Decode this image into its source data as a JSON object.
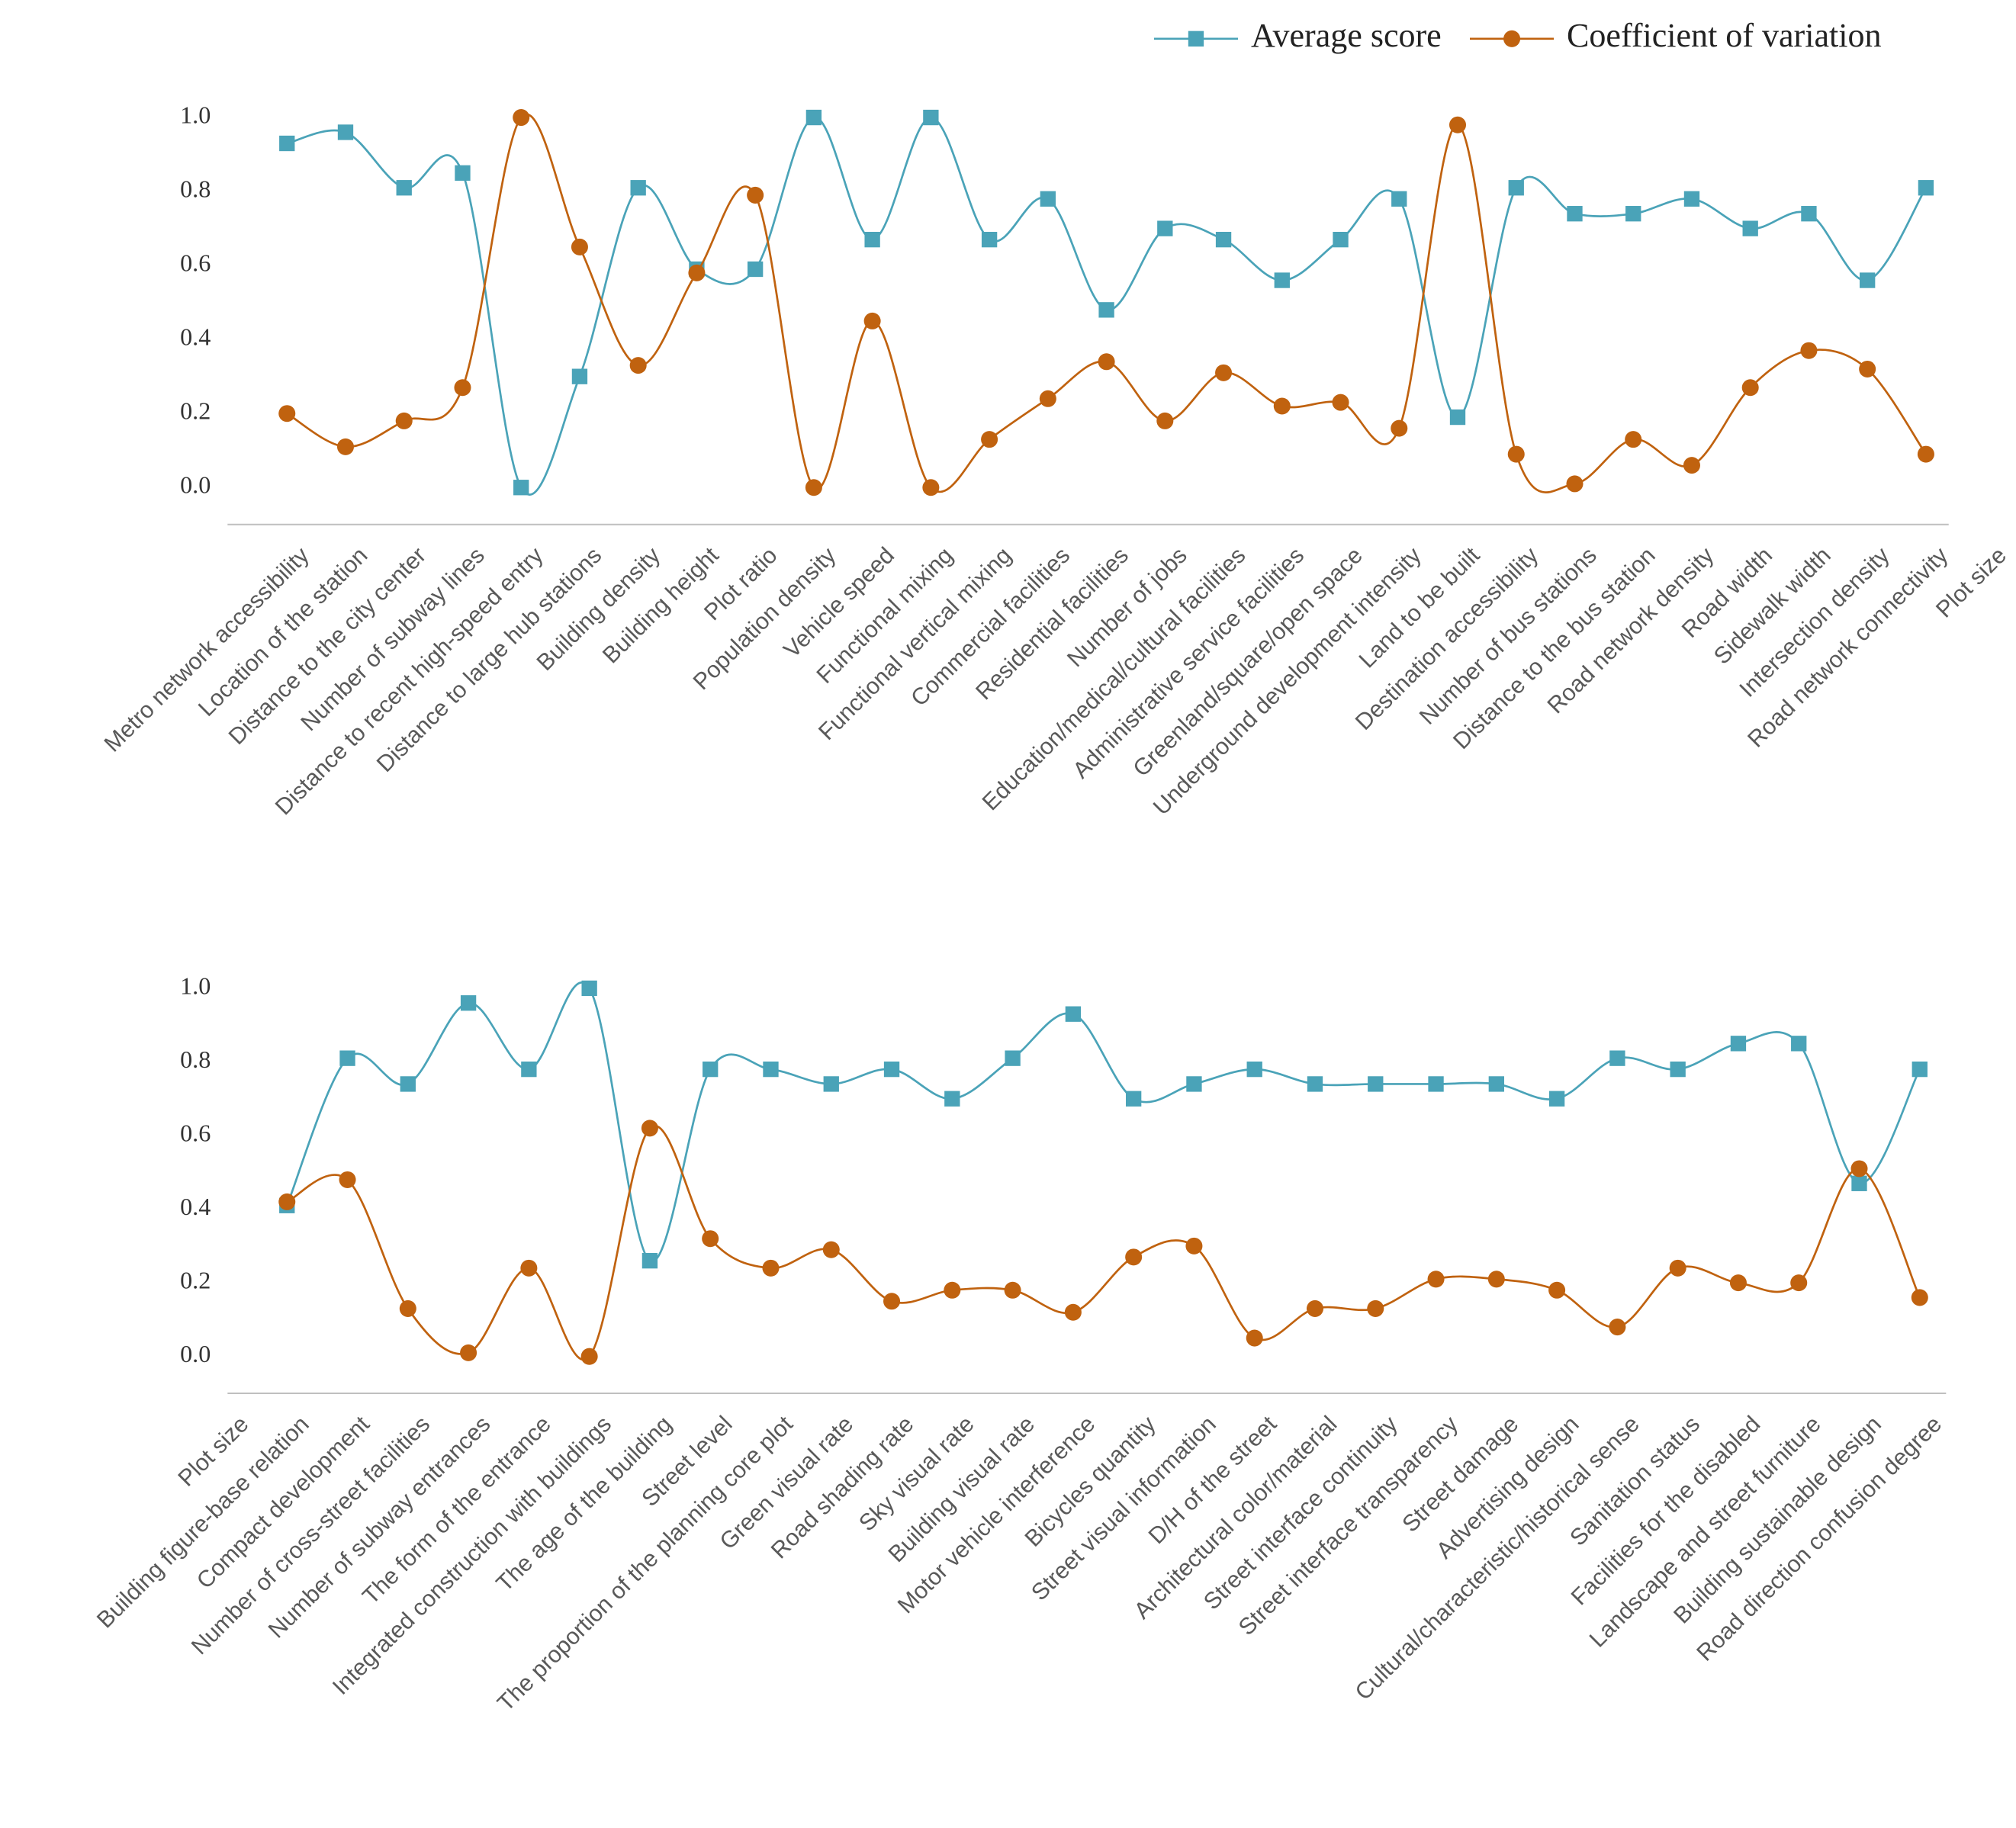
{
  "chart_data": [
    {
      "type": "line",
      "legend": "top-right",
      "categories": [
        "Metro network accessibility",
        "Location of the station",
        "Distance to the city center",
        "Number of subway lines",
        "Distance to recent high-speed entry",
        "Distance to large hub stations",
        "Building density",
        "Building height",
        "Plot ratio",
        "Population density",
        "Vehicle speed",
        "Functional mixing",
        "Functional vertical mixing",
        "Commercial facilities",
        "Residential facilities",
        "Number of jobs",
        "Education/medical/cultural facilities",
        "Administrative service facilities",
        "Greenland/square/open space",
        "Underground development intensity",
        "Land to be built",
        "Destination accessibility",
        "Number of bus stations",
        "Distance to the bus station",
        "Road network density",
        "Road width",
        "Sidewalk width",
        "Intersection density",
        "Road network connectivity",
        "Plot size"
      ],
      "series": [
        {
          "name": "Average score",
          "color": "#4aa3b8",
          "marker": "square",
          "values": [
            0.93,
            0.96,
            0.81,
            0.85,
            0.0,
            0.3,
            0.81,
            0.59,
            0.59,
            1.0,
            0.67,
            1.0,
            0.67,
            0.78,
            0.48,
            0.7,
            0.67,
            0.56,
            0.67,
            0.78,
            0.19,
            0.81,
            0.74,
            0.74,
            0.78,
            0.7,
            0.74,
            0.56,
            0.81,
            null
          ]
        },
        {
          "name": "Coefficient of variation",
          "color": "#c0620f",
          "marker": "circle",
          "values": [
            0.2,
            0.11,
            0.18,
            0.27,
            1.0,
            0.65,
            0.33,
            0.58,
            0.79,
            0.0,
            0.45,
            0.0,
            0.13,
            0.24,
            0.34,
            0.18,
            0.31,
            0.22,
            0.23,
            0.16,
            0.98,
            0.09,
            0.01,
            0.13,
            0.06,
            0.27,
            0.37,
            0.32,
            0.09,
            null
          ]
        }
      ],
      "ylim": [
        -0.1,
        1.1
      ],
      "yticks": [
        {
          "value": 0,
          "label": "0.0"
        },
        {
          "value": 0.2,
          "label": "0.2"
        },
        {
          "value": 0.4,
          "label": "0.4"
        },
        {
          "value": 0.6,
          "label": "0.6"
        },
        {
          "value": 0.8,
          "label": "0.8"
        },
        {
          "value": 1,
          "label": "1.0"
        }
      ]
    },
    {
      "type": "line",
      "categories": [
        "Plot size",
        "Building figure-base relation",
        "Compact development",
        "Number of cross-street facilities",
        "Number of subway entrances",
        "The form of the entrance",
        "Integrated construction with buildings",
        "The age of the building",
        "Street level",
        "The proportion of the planning core plot",
        "Green visual rate",
        "Road shading rate",
        "Sky visual rate",
        "Building visual rate",
        "Motor vehicle interference",
        "Bicycles quantity",
        "Street visual information",
        "D/H of the street",
        "Architectural color/material",
        "Street interface continuity",
        "Street interface transparency",
        "Street damage",
        "Advertising design",
        "Cultural/characteristic/historical sense",
        "Sanitation status",
        "Facilities for the disabled",
        "Landscape and street furniture",
        "Building sustainable design",
        "Road direction confusion degree"
      ],
      "series": [
        {
          "color": "#4aa3b8",
          "marker": "square",
          "values": [
            null,
            0.41,
            0.81,
            0.74,
            0.96,
            0.78,
            1.0,
            0.26,
            0.78,
            0.78,
            0.74,
            0.78,
            0.7,
            0.81,
            0.93,
            0.7,
            0.74,
            0.78,
            0.74,
            0.74,
            0.74,
            0.74,
            0.7,
            0.81,
            0.78,
            0.85,
            0.85,
            0.47,
            0.78
          ]
        },
        {
          "color": "#c0620f",
          "marker": "circle",
          "values": [
            null,
            0.42,
            0.48,
            0.13,
            0.01,
            0.24,
            0.0,
            0.62,
            0.32,
            0.24,
            0.29,
            0.15,
            0.18,
            0.18,
            0.12,
            0.27,
            0.3,
            0.05,
            0.13,
            0.13,
            0.21,
            0.21,
            0.18,
            0.08,
            0.24,
            0.2,
            0.2,
            0.51,
            0.16
          ]
        }
      ],
      "ylim": [
        -0.1,
        1.1
      ],
      "yticks": [
        {
          "value": 0,
          "label": "0.0"
        },
        {
          "value": 0.2,
          "label": "0.2"
        },
        {
          "value": 0.4,
          "label": "0.4"
        },
        {
          "value": 0.6,
          "label": "0.6"
        },
        {
          "value": 0.8,
          "label": "0.8"
        },
        {
          "value": 1,
          "label": "1.0"
        }
      ]
    }
  ]
}
